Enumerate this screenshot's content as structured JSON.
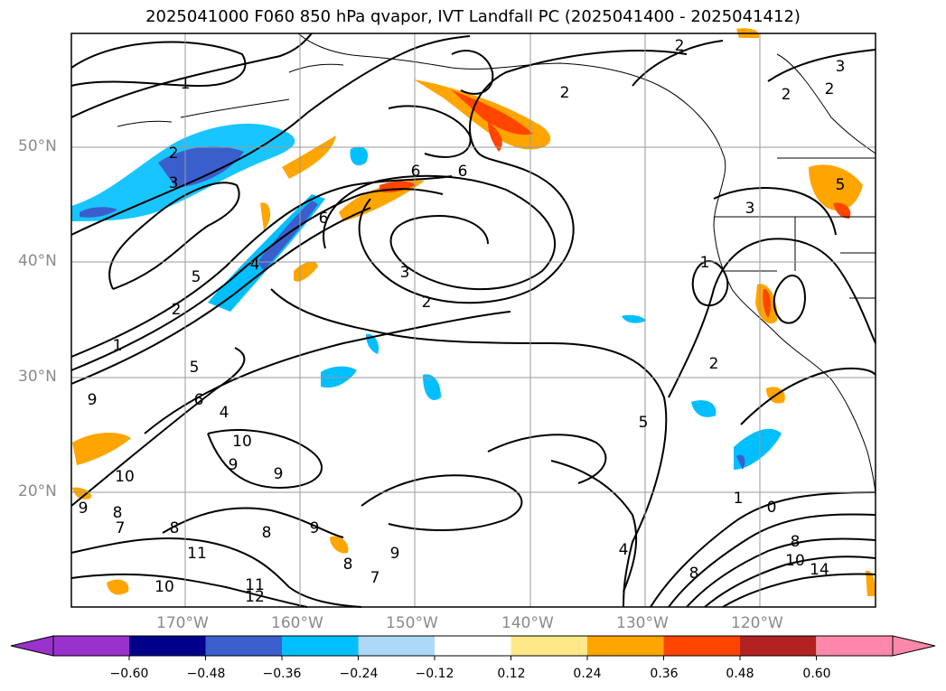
{
  "title": "2025041000 F060 850 hPa qvapor, IVT Landfall PC (2025041400 - 2025041412)",
  "map": {
    "lat_labels": [
      "50°N",
      "40°N",
      "30°N",
      "20°N"
    ],
    "lon_labels": [
      "170°W",
      "160°W",
      "150°W",
      "140°W",
      "130°W",
      "120°W"
    ],
    "contour_labels": [
      "1",
      "2",
      "3",
      "2",
      "2",
      "2",
      "3",
      "2",
      "6",
      "6",
      "6",
      "4",
      "2",
      "1",
      "3",
      "2",
      "1",
      "5",
      "6",
      "5",
      "9",
      "10",
      "9",
      "9",
      "10",
      "8",
      "8",
      "7",
      "9",
      "11",
      "11",
      "12",
      "8",
      "9",
      "8",
      "7",
      "9",
      "10",
      "8",
      "4",
      "5",
      "2",
      "1",
      "0",
      "8",
      "10",
      "14",
      "3",
      "5",
      "4"
    ]
  },
  "colorbar": {
    "ticks": [
      "−0.60",
      "−0.48",
      "−0.36",
      "−0.24",
      "−0.12",
      "0.12",
      "0.24",
      "0.36",
      "0.48",
      "0.60"
    ],
    "colors": [
      "#9932cc",
      "#00008b",
      "#3a5fcd",
      "#00bfff",
      "#add8f7",
      "#ffffff",
      "#ffe88a",
      "#ffa500",
      "#ff4500",
      "#b22222",
      "#ff88aa"
    ]
  }
}
